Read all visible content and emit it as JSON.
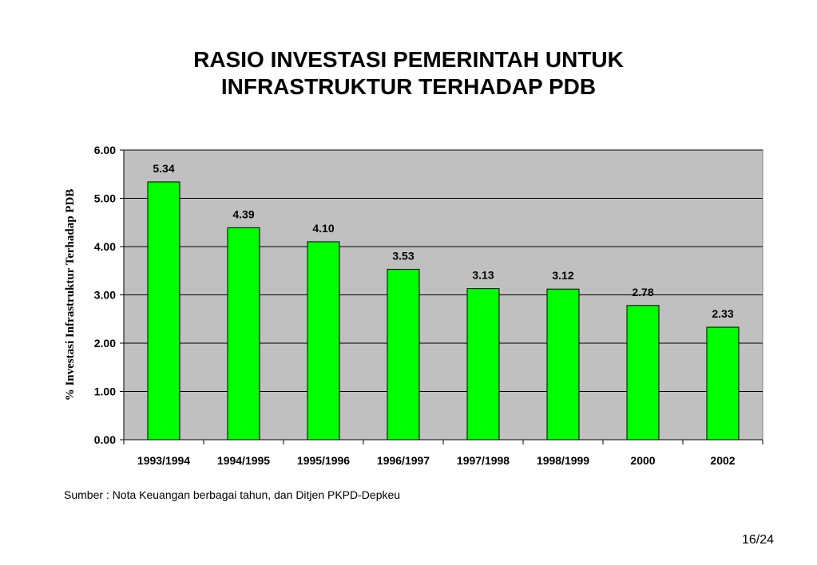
{
  "slide": {
    "title_line1": "RASIO INVESTASI PEMERINTAH UNTUK",
    "title_line2": "INFRASTRUKTUR TERHADAP PDB",
    "source": "Sumber : Nota Keuangan berbagai tahun, dan Ditjen PKPD-Depkeu",
    "page_number": "16/24"
  },
  "chart_data": {
    "type": "bar",
    "title": "RASIO INVESTASI PEMERINTAH UNTUK INFRASTRUKTUR TERHADAP PDB",
    "xlabel": "",
    "ylabel": "% Investasi Infrastruktur Terhadap PDB",
    "categories": [
      "1993/1994",
      "1994/1995",
      "1995/1996",
      "1996/1997",
      "1997/1998",
      "1998/1999",
      "2000",
      "2002"
    ],
    "values": [
      5.34,
      4.39,
      4.1,
      3.53,
      3.13,
      3.12,
      2.78,
      2.33
    ],
    "data_labels": [
      "5.34",
      "4.39",
      "4.10",
      "3.53",
      "3.13",
      "3.12",
      "2.78",
      "2.33"
    ],
    "ylim": [
      0,
      6
    ],
    "yticks": [
      "0.00",
      "1.00",
      "2.00",
      "3.00",
      "4.00",
      "5.00",
      "6.00"
    ],
    "grid": true,
    "legend": "none",
    "colors": {
      "bar": "#00ff00",
      "bar_stroke": "#000000",
      "plot_background": "#c0c0c0",
      "gridline": "#000000"
    }
  }
}
